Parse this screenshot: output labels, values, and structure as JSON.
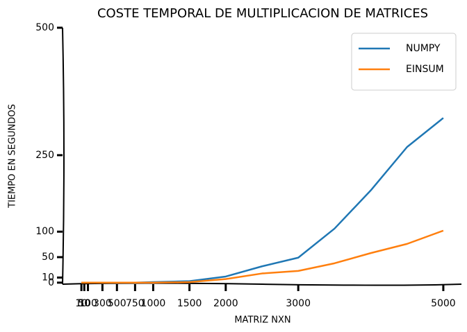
{
  "chart_data": {
    "type": "line",
    "title": "COSTE TEMPORAL DE MULTIPLICACION DE MATRICES",
    "x_label": "MATRIZ NXN",
    "y_label": "TIEMPO EN SEGUNDOS",
    "x": [
      10,
      50,
      100,
      300,
      500,
      750,
      1000,
      1500,
      2000,
      2500,
      3000,
      3500,
      4000,
      4500,
      5000
    ],
    "series": [
      {
        "name": "NUMPY",
        "color": "#1f77b4",
        "values": [
          0,
          0,
          0,
          0,
          0,
          0,
          1,
          3,
          12,
          32,
          49,
          106,
          181,
          266,
          323
        ]
      },
      {
        "name": "EINSUM",
        "color": "#ff7f0e",
        "values": [
          0,
          0,
          0,
          0,
          0,
          0,
          0,
          1,
          7,
          18,
          23,
          38,
          58,
          76,
          102
        ]
      }
    ],
    "xlim": [
      -250,
      5250
    ],
    "xticks": [
      10,
      50,
      100,
      300,
      500,
      750,
      1000,
      1500,
      2000,
      3000,
      5000
    ],
    "ylim": [
      -3,
      500
    ],
    "yticks": [
      0,
      10,
      50,
      100,
      250,
      500
    ],
    "legend": "upper right",
    "grid": false
  }
}
